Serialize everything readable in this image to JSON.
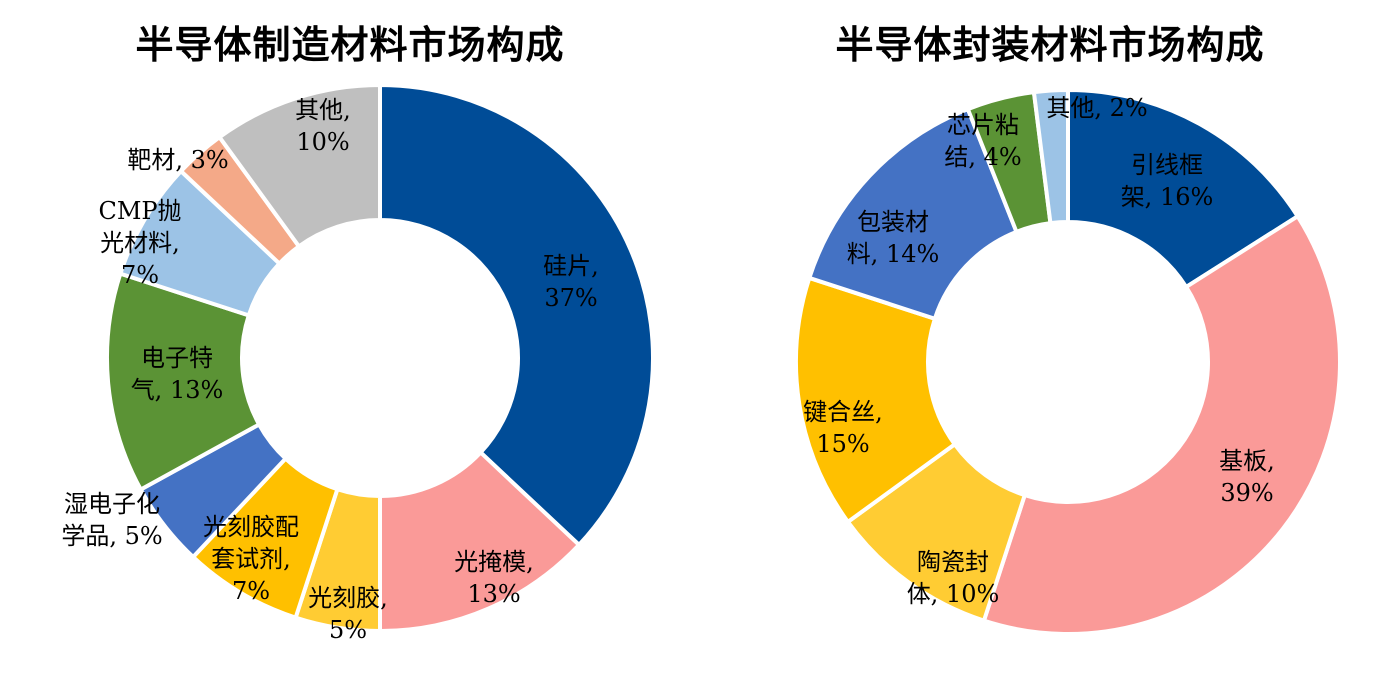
{
  "chart_data": [
    {
      "type": "pie",
      "title": "半导体制造材料市场构成",
      "slices": [
        {
          "name": "硅片",
          "value": 37,
          "label_lines": [
            "硅片,",
            "37%"
          ],
          "color": "#004C97"
        },
        {
          "name": "光掩模",
          "value": 13,
          "label_lines": [
            "光掩模,",
            "13%"
          ],
          "color": "#FA9A98"
        },
        {
          "name": "光刻胶",
          "value": 5,
          "label_lines": [
            "光刻胶,",
            "5%"
          ],
          "color": "#FFCC33"
        },
        {
          "name": "光刻胶配套试剂",
          "value": 7,
          "label_lines": [
            "光刻胶配",
            "套试剂,",
            "7%"
          ],
          "color": "#FFC000"
        },
        {
          "name": "湿电子化学品",
          "value": 5,
          "label_lines": [
            "湿电子化",
            "学品, 5%"
          ],
          "color": "#4472C4"
        },
        {
          "name": "电子特气",
          "value": 13,
          "label_lines": [
            "电子特",
            "气, 13%"
          ],
          "color": "#5B9335"
        },
        {
          "name": "CMP抛光材料",
          "value": 7,
          "label_lines": [
            "CMP抛",
            "光材料,",
            "7%"
          ],
          "color": "#9CC3E6"
        },
        {
          "name": "靶材",
          "value": 3,
          "label_lines": [
            "靶材, 3%"
          ],
          "color": "#F4A988"
        },
        {
          "name": "其他",
          "value": 10,
          "label_lines": [
            "其他,",
            "10%"
          ],
          "color": "#BFBFBF"
        }
      ]
    },
    {
      "type": "pie",
      "title": "半导体封装材料市场构成",
      "slices": [
        {
          "name": "引线框架",
          "value": 16,
          "label_lines": [
            "引线框",
            "架, 16%"
          ],
          "color": "#004C97"
        },
        {
          "name": "基板",
          "value": 39,
          "label_lines": [
            "基板,",
            "39%"
          ],
          "color": "#FA9A98"
        },
        {
          "name": "陶瓷封体",
          "value": 10,
          "label_lines": [
            "陶瓷封",
            "体, 10%"
          ],
          "color": "#FFCC33"
        },
        {
          "name": "键合丝",
          "value": 15,
          "label_lines": [
            "键合丝,",
            "15%"
          ],
          "color": "#FFC000"
        },
        {
          "name": "包装材料",
          "value": 14,
          "label_lines": [
            "包装材",
            "料, 14%"
          ],
          "color": "#4472C4"
        },
        {
          "name": "芯片粘结",
          "value": 4,
          "label_lines": [
            "芯片粘",
            "结, 4%"
          ],
          "color": "#5B9335"
        },
        {
          "name": "其他",
          "value": 2,
          "label_lines": [
            "其他, 2%"
          ],
          "color": "#9CC3E6"
        }
      ]
    }
  ]
}
